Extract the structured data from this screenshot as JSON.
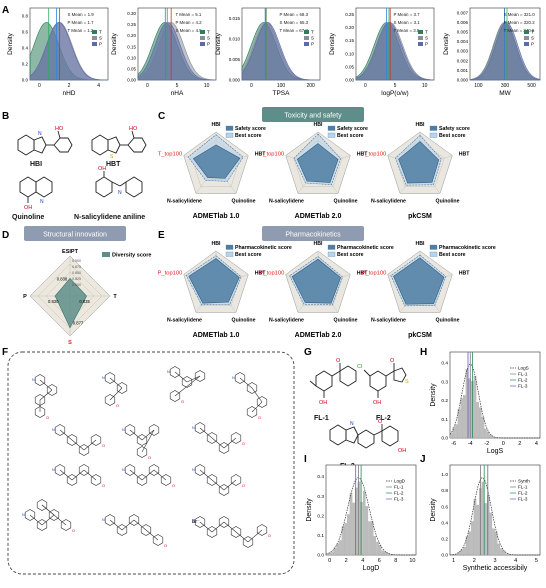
{
  "panels": {
    "A": {
      "label": "A",
      "legend": [
        "T",
        "S",
        "P"
      ],
      "colors": {
        "T": "#2e7d5b",
        "S": "#8a8f99",
        "P": "#5b6aa8"
      },
      "charts": [
        {
          "xlabel": "nHD",
          "ylabel": "Density",
          "xticks": [
            "0",
            "2",
            "4"
          ],
          "yticks": [
            "0.0",
            "0.2",
            "0.4",
            "0.6",
            "0.8"
          ],
          "means": [
            {
              "text": "S Mean = 1.9"
            },
            {
              "text": "P Mean = 1.7"
            },
            {
              "text": "T Mean = 1.2"
            }
          ],
          "markers": [
            1.9,
            1.7,
            1.2
          ],
          "xrange": [
            0,
            5
          ]
        },
        {
          "xlabel": "nHA",
          "ylabel": "",
          "xticks": [
            "0",
            "5",
            "10"
          ],
          "yticks": [
            "0.00",
            "0.05",
            "0.10",
            "0.15",
            "0.20",
            "0.25",
            "0.30"
          ],
          "means": [
            {
              "text": "T Mean = 5.1"
            },
            {
              "text": "P Mean = 4.2"
            },
            {
              "text": "S Mean = 4.5"
            }
          ],
          "markers": [
            5.1,
            4.2,
            4.5
          ],
          "xrange": [
            0,
            12
          ]
        },
        {
          "xlabel": "TPSA",
          "ylabel": "",
          "xticks": [
            "0",
            "100",
            "200"
          ],
          "yticks": [
            "0.000",
            "0.005",
            "0.010",
            "0.015"
          ],
          "means": [
            {
              "text": "P Mean = 68.3"
            },
            {
              "text": "S Mean = 65.3"
            },
            {
              "text": "T Mean = 67.8"
            }
          ],
          "markers": [
            68.3,
            65.3,
            67.8
          ],
          "xrange": [
            0,
            220
          ]
        },
        {
          "xlabel": "logP(o/w)",
          "ylabel": "",
          "xticks": [
            "0",
            "5",
            "10"
          ],
          "yticks": [
            "0.00",
            "0.05",
            "0.10",
            "0.15",
            "0.20",
            "0.25"
          ],
          "means": [
            {
              "text": "P Mean = 3.7"
            },
            {
              "text": "S Mean = 3.1"
            },
            {
              "text": "T Mean = 3.5"
            }
          ],
          "markers": [
            3.7,
            3.1,
            3.5
          ],
          "xrange": [
            -2,
            11
          ]
        },
        {
          "xlabel": "MW",
          "ylabel": "",
          "xticks": [
            "100",
            "300",
            "500"
          ],
          "yticks": [
            "0.000",
            "0.001",
            "0.002",
            "0.003",
            "0.004",
            "0.005",
            "0.006",
            "0.007"
          ],
          "means": [
            {
              "text": "S Mean = 321.0"
            },
            {
              "text": "P Mean = 320.2"
            },
            {
              "text": "T Mean = 340.6"
            }
          ],
          "markers": [
            321.0,
            320.2,
            340.6
          ],
          "xrange": [
            50,
            600
          ]
        }
      ]
    },
    "B": {
      "label": "B",
      "molecules": [
        "HBI",
        "HBT",
        "Quinoline",
        "N-salicylidene aniline"
      ]
    },
    "C": {
      "label": "C",
      "banner": "Toxicity and safety",
      "top_label": "T_top100",
      "legend": [
        "Safety score",
        "Best score"
      ],
      "axes": [
        "HBI",
        "HBT",
        "Quinoline",
        "N-salicylidene",
        "T_top100"
      ],
      "charts": [
        {
          "title": "ADMETlab 1.0",
          "score": [
            0.62,
            0.74,
            0.45,
            0.42,
            0.7
          ],
          "best": [
            0.92,
            0.84,
            0.56,
            0.52,
            0.86
          ]
        },
        {
          "title": "ADMETlab 2.0",
          "score": [
            0.66,
            0.62,
            0.6,
            0.55,
            0.64
          ],
          "best": [
            0.94,
            0.7,
            0.68,
            0.62,
            0.74
          ]
        },
        {
          "title": "pkCSM",
          "score": [
            0.72,
            0.58,
            0.6,
            0.62,
            0.66
          ],
          "best": [
            0.9,
            0.66,
            0.68,
            0.7,
            0.76
          ]
        }
      ]
    },
    "D": {
      "label": "D",
      "banner": "Structural innovation",
      "legend": [
        "Diversity score"
      ],
      "axes": {
        "top": "ESIPT",
        "left": "P",
        "right": "T",
        "bottom": "S"
      },
      "values": {
        "top": "0.838",
        "left": "0.830",
        "right": "0.835",
        "bottom": "0.877"
      },
      "ring_ticks": [
        "0.900",
        "0.875",
        "0.850",
        "0.825",
        "0.800"
      ]
    },
    "E": {
      "label": "E",
      "banner": "Pharmacokinetics",
      "top_label": "P_top100",
      "legend": [
        "Pharmacokinetic score",
        "Best score"
      ],
      "axes": [
        "HBI",
        "HBT",
        "Quinoline",
        "N-salicylidene",
        "P_top100"
      ],
      "charts": [
        {
          "title": "ADMETlab 1.0",
          "score": [
            0.78,
            0.72,
            0.62,
            0.66,
            0.84
          ],
          "best": [
            0.86,
            0.78,
            0.7,
            0.72,
            0.92
          ]
        },
        {
          "title": "ADMETlab 2.0",
          "score": [
            0.76,
            0.7,
            0.66,
            0.64,
            0.8
          ],
          "best": [
            0.84,
            0.76,
            0.72,
            0.7,
            0.88
          ]
        },
        {
          "title": "pkCSM",
          "score": [
            0.8,
            0.74,
            0.68,
            0.7,
            0.82
          ],
          "best": [
            0.88,
            0.8,
            0.74,
            0.76,
            0.9
          ]
        }
      ]
    },
    "F": {
      "label": "F",
      "counter_ion": "Br⁻"
    },
    "G": {
      "label": "G",
      "molecules": [
        "FL-1",
        "FL-2",
        "FL-3"
      ]
    },
    "H": {
      "label": "H",
      "xlabel": "LogS",
      "ylabel": "Density",
      "xticks": [
        "-6",
        "-4",
        "-2",
        "0",
        "2",
        "4"
      ],
      "yticks": [
        "0.0",
        "0.1",
        "0.2",
        "0.3",
        "0.4"
      ],
      "legend": [
        "LogS",
        "FL-1",
        "FL-2",
        "FL-3"
      ],
      "markers": [
        -4.3,
        -4.0,
        -4.6
      ]
    },
    "I": {
      "label": "I",
      "xlabel": "LogD",
      "ylabel": "Density",
      "xticks": [
        "0",
        "2",
        "4",
        "6",
        "8",
        "10"
      ],
      "yticks": [
        "0.0",
        "0.1",
        "0.2",
        "0.3",
        "0.4"
      ],
      "legend": [
        "LogD",
        "FL-1",
        "FL-2",
        "FL-3"
      ],
      "markers": [
        3.6,
        3.9,
        3.3
      ]
    },
    "J": {
      "label": "J",
      "xlabel": "Synthetic accessibily",
      "ylabel": "Density",
      "xticks": [
        "1",
        "2",
        "3",
        "4",
        "5"
      ],
      "yticks": [
        "0.0",
        "0.2",
        "0.4",
        "0.6",
        "0.8",
        "1.0"
      ],
      "legend": [
        "Synth",
        "FL-1",
        "FL-2",
        "FL-3"
      ],
      "markers": [
        2.2,
        2.4,
        2.6
      ]
    }
  },
  "chart_data": [
    {
      "type": "area",
      "xlabel": "nHD",
      "ylabel": "Density",
      "series": [
        {
          "name": "T",
          "mean": 1.2
        },
        {
          "name": "S",
          "mean": 1.9
        },
        {
          "name": "P",
          "mean": 1.7
        }
      ]
    },
    {
      "type": "area",
      "xlabel": "nHA",
      "series": [
        {
          "name": "T",
          "mean": 5.1
        },
        {
          "name": "S",
          "mean": 4.5
        },
        {
          "name": "P",
          "mean": 4.2
        }
      ]
    },
    {
      "type": "area",
      "xlabel": "TPSA",
      "series": [
        {
          "name": "T",
          "mean": 67.8
        },
        {
          "name": "S",
          "mean": 65.3
        },
        {
          "name": "P",
          "mean": 68.3
        }
      ]
    },
    {
      "type": "area",
      "xlabel": "logP(o/w)",
      "series": [
        {
          "name": "T",
          "mean": 3.5
        },
        {
          "name": "S",
          "mean": 3.1
        },
        {
          "name": "P",
          "mean": 3.7
        }
      ]
    },
    {
      "type": "area",
      "xlabel": "MW",
      "series": [
        {
          "name": "T",
          "mean": 340.6
        },
        {
          "name": "S",
          "mean": 321.0
        },
        {
          "name": "P",
          "mean": 320.2
        }
      ]
    },
    {
      "type": "radar",
      "title": "ADMETlab 1.0",
      "series": [
        {
          "name": "Safety score"
        },
        {
          "name": "Best score"
        }
      ]
    },
    {
      "type": "radar",
      "title": "ADMETlab 2.0",
      "series": [
        {
          "name": "Safety score"
        },
        {
          "name": "Best score"
        }
      ]
    },
    {
      "type": "radar",
      "title": "pkCSM",
      "series": [
        {
          "name": "Safety score"
        },
        {
          "name": "Best score"
        }
      ]
    },
    {
      "type": "radar",
      "axes": [
        "ESIPT",
        "T",
        "S",
        "P"
      ],
      "values": [
        0.838,
        0.835,
        0.877,
        0.83
      ],
      "series": [
        {
          "name": "Diversity score"
        }
      ]
    },
    {
      "type": "bar",
      "xlabel": "LogS",
      "ylabel": "Density"
    },
    {
      "type": "bar",
      "xlabel": "LogD",
      "ylabel": "Density"
    },
    {
      "type": "bar",
      "xlabel": "Synthetic accessibily",
      "ylabel": "Density"
    }
  ]
}
